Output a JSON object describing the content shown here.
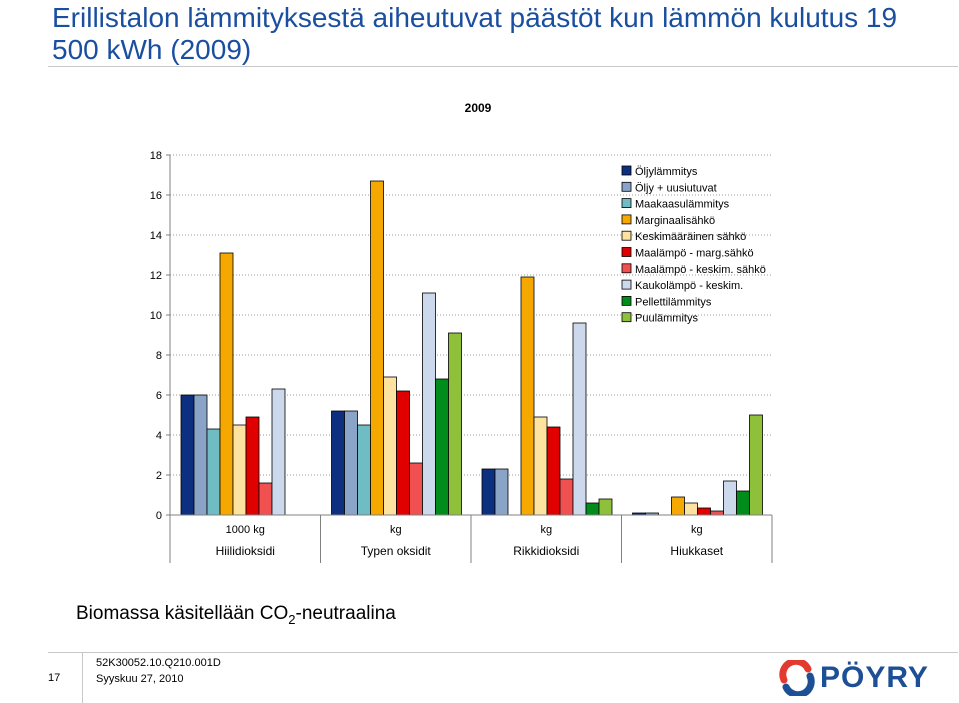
{
  "slide": {
    "title": "Erillistalon lämmityksestä aiheutuvat päästöt kun lämmön kulutus 19 500 kWh (2009)",
    "note_prefix": "Biomassa käsitellään CO",
    "note_sub": "2",
    "note_suffix": "-neutraalina",
    "page_number": "17",
    "doc_code": "52K30052.10.Q210.001D",
    "date": "Syyskuu 27, 2010",
    "logo_text": "PÖYRY",
    "logo_colors": [
      "#e23a2e",
      "#1c4f96"
    ]
  },
  "chart_data": {
    "type": "bar",
    "title": "2009",
    "ylim": [
      0,
      18
    ],
    "yticks": [
      0,
      2,
      4,
      6,
      8,
      10,
      12,
      14,
      16,
      18
    ],
    "grid": true,
    "legend_position": "top-right",
    "categories": [
      {
        "unit": "1000 kg",
        "name": "Hiilidioksidi"
      },
      {
        "unit": "kg",
        "name": "Typen oksidit"
      },
      {
        "unit": "kg",
        "name": "Rikkidioksidi"
      },
      {
        "unit": "kg",
        "name": "Hiukkaset"
      }
    ],
    "series": [
      {
        "name": "Öljylämmitys",
        "color": "#0d2f80",
        "values": [
          6.0,
          5.2,
          2.3,
          0.1
        ]
      },
      {
        "name": "Öljy + uusiutuvat",
        "color": "#8aa4c8",
        "values": [
          6.0,
          5.2,
          2.3,
          0.1
        ]
      },
      {
        "name": "Maakaasulämmitys",
        "color": "#6fbcc4",
        "values": [
          4.3,
          4.5,
          0,
          0
        ]
      },
      {
        "name": "Marginaalisähkö",
        "color": "#f5a800",
        "values": [
          13.1,
          16.7,
          11.9,
          0.9
        ]
      },
      {
        "name": "Keskimääräinen sähkö",
        "color": "#fde2a0",
        "values": [
          4.5,
          6.9,
          4.9,
          0.6
        ]
      },
      {
        "name": "Maalämpö - marg.sähkö",
        "color": "#e00000",
        "values": [
          4.9,
          6.2,
          4.4,
          0.35
        ]
      },
      {
        "name": "Maalämpö - keskim. sähkö",
        "color": "#f05050",
        "values": [
          1.6,
          2.6,
          1.8,
          0.2
        ]
      },
      {
        "name": "Kaukolämpö - keskim.",
        "color": "#ccd9ec",
        "values": [
          6.3,
          11.1,
          9.6,
          1.7
        ]
      },
      {
        "name": "Pellettilämmitys",
        "color": "#008c1a",
        "values": [
          0,
          6.8,
          0.6,
          1.2
        ]
      },
      {
        "name": "Puulämmitys",
        "color": "#8ec03a",
        "values": [
          0,
          9.1,
          0.8,
          5.0
        ]
      }
    ]
  }
}
